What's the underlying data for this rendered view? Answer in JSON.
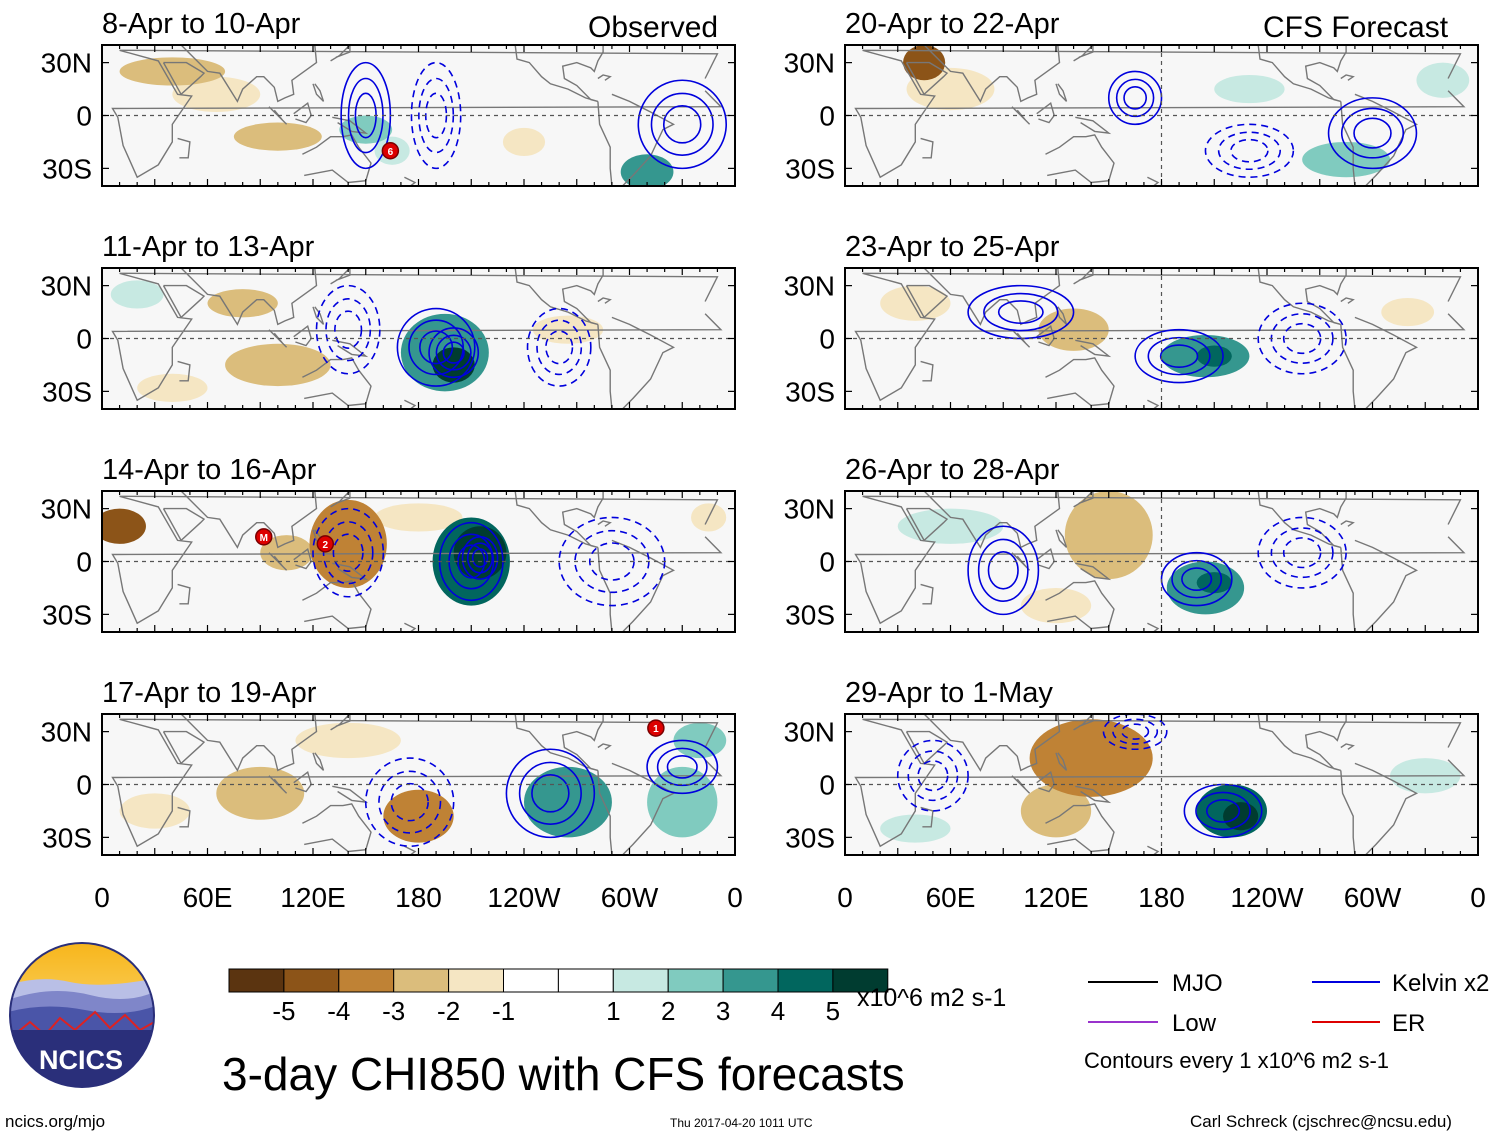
{
  "main_title": "3-day CHI850 with CFS forecasts",
  "observed_label": "Observed",
  "forecast_label": "CFS Forecast",
  "colors": {
    "brown": [
      "#5b3410",
      "#8c5418",
      "#bf8235",
      "#dbbd7c",
      "#f5e6c3",
      "#f7f7f7"
    ],
    "teal": [
      "#f7f7f7",
      "#c7e9e2",
      "#80cbbf",
      "#35978f",
      "#01665e",
      "#003c30"
    ],
    "kelvin": "#0000dd",
    "mjo": "#000000",
    "low": "#9933cc",
    "er": "#dd0000",
    "land": "#777777"
  },
  "chart_data": [
    {
      "type": "map",
      "title": "8-Apr to 10-Apr",
      "group": "observed",
      "blobs": [
        [
          40,
          25,
          30,
          8,
          -2.2
        ],
        [
          65,
          12,
          25,
          10,
          -1.8
        ],
        [
          100,
          -12,
          25,
          8,
          -2.0
        ],
        [
          150,
          -8,
          15,
          8,
          2.0
        ],
        [
          165,
          -20,
          10,
          8,
          1.5
        ],
        [
          310,
          -32,
          15,
          10,
          3.5
        ],
        [
          240,
          -15,
          12,
          8,
          -1.0
        ]
      ],
      "contours": [
        [
          150,
          0,
          14,
          30,
          1
        ],
        [
          190,
          0,
          14,
          30,
          -1
        ],
        [
          330,
          -5,
          25,
          25,
          1
        ]
      ],
      "storms": [
        {
          "label": "6",
          "lon": 164,
          "lat": -20
        }
      ]
    },
    {
      "type": "map",
      "title": "11-Apr to 13-Apr",
      "group": "observed",
      "blobs": [
        [
          195,
          -8,
          25,
          22,
          3.0
        ],
        [
          200,
          -15,
          12,
          10,
          5.5
        ],
        [
          100,
          -15,
          30,
          12,
          -2.0
        ],
        [
          80,
          20,
          20,
          8,
          -2.0
        ],
        [
          40,
          -28,
          20,
          8,
          -1.0
        ],
        [
          265,
          5,
          20,
          8,
          -1.5
        ],
        [
          20,
          25,
          15,
          8,
          1.5
        ]
      ],
      "contours": [
        [
          190,
          -5,
          22,
          22,
          1
        ],
        [
          200,
          -8,
          14,
          14,
          1
        ],
        [
          140,
          5,
          18,
          25,
          -1
        ],
        [
          260,
          -5,
          18,
          22,
          -1
        ]
      ],
      "storms": []
    },
    {
      "type": "map",
      "title": "14-Apr to 16-Apr",
      "group": "observed",
      "blobs": [
        [
          10,
          20,
          15,
          10,
          -4.0
        ],
        [
          140,
          10,
          22,
          25,
          -3.2
        ],
        [
          105,
          5,
          15,
          10,
          -2.0
        ],
        [
          210,
          0,
          22,
          25,
          4.0
        ],
        [
          215,
          5,
          15,
          15,
          5.8
        ],
        [
          180,
          25,
          25,
          8,
          -1.5
        ],
        [
          345,
          25,
          10,
          8,
          -1.5
        ]
      ],
      "contours": [
        [
          140,
          5,
          20,
          25,
          -1
        ],
        [
          210,
          0,
          18,
          22,
          1
        ],
        [
          215,
          2,
          10,
          12,
          1
        ],
        [
          290,
          0,
          30,
          25,
          -1
        ]
      ],
      "storms": [
        {
          "label": "M",
          "lon": 92,
          "lat": 14
        },
        {
          "label": "2",
          "lon": 127,
          "lat": 10
        }
      ]
    },
    {
      "type": "map",
      "title": "17-Apr to 19-Apr",
      "group": "observed",
      "blobs": [
        [
          180,
          -18,
          20,
          15,
          -3.5
        ],
        [
          90,
          -5,
          25,
          15,
          -2.5
        ],
        [
          30,
          -15,
          20,
          10,
          -1.5
        ],
        [
          265,
          -10,
          25,
          20,
          3.0
        ],
        [
          330,
          -10,
          20,
          20,
          2.5
        ],
        [
          340,
          25,
          15,
          10,
          2.0
        ],
        [
          140,
          25,
          30,
          10,
          -1.0
        ]
      ],
      "contours": [
        [
          175,
          -10,
          25,
          25,
          -1
        ],
        [
          255,
          -5,
          25,
          25,
          1
        ],
        [
          330,
          10,
          20,
          15,
          1
        ]
      ],
      "storms": [
        {
          "label": "1",
          "lon": 315,
          "lat": 32
        }
      ]
    },
    {
      "type": "map",
      "title": "20-Apr to 22-Apr",
      "group": "forecast",
      "blobs": [
        [
          45,
          30,
          12,
          10,
          -4.5
        ],
        [
          60,
          15,
          25,
          12,
          -1.5
        ],
        [
          285,
          -25,
          25,
          10,
          2.0
        ],
        [
          340,
          20,
          15,
          10,
          1.5
        ],
        [
          230,
          15,
          20,
          8,
          1.0
        ]
      ],
      "contours": [
        [
          165,
          10,
          15,
          15,
          1
        ],
        [
          230,
          -20,
          25,
          15,
          -1
        ],
        [
          300,
          -10,
          25,
          20,
          1
        ]
      ],
      "storms": []
    },
    {
      "type": "map",
      "title": "23-Apr to 25-Apr",
      "group": "forecast",
      "blobs": [
        [
          205,
          -10,
          25,
          12,
          3.0
        ],
        [
          210,
          -10,
          10,
          6,
          4.5
        ],
        [
          130,
          5,
          20,
          12,
          -2.0
        ],
        [
          40,
          20,
          20,
          10,
          -1.0
        ],
        [
          320,
          15,
          15,
          8,
          -1.0
        ]
      ],
      "contours": [
        [
          190,
          -10,
          25,
          15,
          1
        ],
        [
          260,
          0,
          25,
          20,
          -1
        ],
        [
          100,
          15,
          30,
          15,
          1
        ]
      ],
      "storms": []
    },
    {
      "type": "map",
      "title": "26-Apr to 28-Apr",
      "group": "forecast",
      "blobs": [
        [
          150,
          15,
          25,
          25,
          -2.5
        ],
        [
          205,
          -15,
          22,
          15,
          3.0
        ],
        [
          210,
          -12,
          10,
          6,
          4.5
        ],
        [
          120,
          -25,
          20,
          10,
          -1.0
        ],
        [
          60,
          20,
          30,
          10,
          1.0
        ]
      ],
      "contours": [
        [
          200,
          -10,
          20,
          15,
          1
        ],
        [
          90,
          -5,
          20,
          25,
          1
        ],
        [
          260,
          5,
          25,
          20,
          -1
        ]
      ],
      "storms": []
    },
    {
      "type": "map",
      "title": "29-Apr to 1-May",
      "group": "forecast",
      "blobs": [
        [
          140,
          15,
          35,
          22,
          -3.2
        ],
        [
          120,
          -15,
          20,
          15,
          -2.0
        ],
        [
          220,
          -15,
          20,
          15,
          4.0
        ],
        [
          225,
          -18,
          10,
          8,
          5.0
        ],
        [
          40,
          -25,
          20,
          8,
          1.0
        ],
        [
          330,
          5,
          20,
          10,
          1.5
        ]
      ],
      "contours": [
        [
          215,
          -15,
          22,
          15,
          1
        ],
        [
          165,
          30,
          18,
          10,
          -1
        ],
        [
          50,
          5,
          20,
          20,
          -1
        ]
      ],
      "storms": []
    }
  ],
  "lat_ticks": [
    "30N",
    "0",
    "30S"
  ],
  "lon_ticks": [
    "0",
    "60E",
    "120E",
    "180",
    "120W",
    "60W",
    "0"
  ],
  "colorbar": {
    "labels": [
      "-5",
      "-4",
      "-3",
      "-2",
      "-1",
      "1",
      "2",
      "3",
      "4",
      "5"
    ],
    "units": "x10^6 m2 s-1"
  },
  "legend": {
    "items": [
      {
        "label": "MJO",
        "color": "#000000"
      },
      {
        "label": "Kelvin x2",
        "color": "#0000dd"
      },
      {
        "label": "Low",
        "color": "#9933cc"
      },
      {
        "label": "ER",
        "color": "#dd0000"
      }
    ],
    "contour_note": "Contours every 1 x10^6 m2 s-1"
  },
  "logo": {
    "text": "NCICS"
  },
  "footer": {
    "url": "ncics.org/mjo",
    "timestamp": "Thu 2017-04-20 1011 UTC",
    "credit": "Carl Schreck (cjschrec@ncsu.edu)"
  }
}
